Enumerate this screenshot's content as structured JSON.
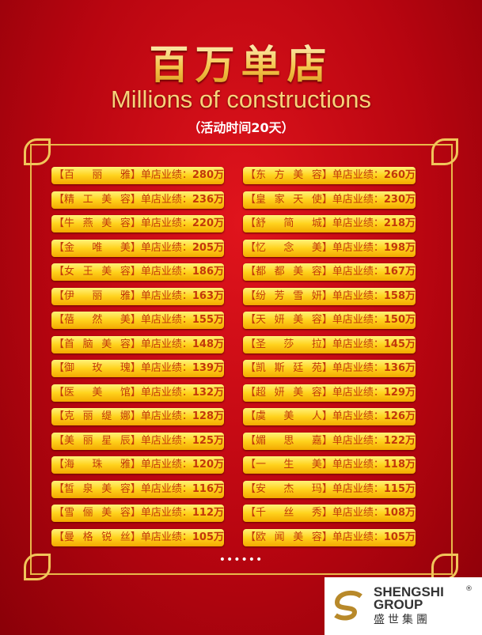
{
  "title": "百万单店",
  "subtitle": "Millions of constructions",
  "period": "（活动时间20天）",
  "label": "单店业绩：",
  "rows": [
    {
      "left": {
        "name": "百丽雅",
        "value": "280万"
      },
      "right": {
        "name": "东方美容",
        "value": "260万"
      }
    },
    {
      "left": {
        "name": "精工美容",
        "value": "236万"
      },
      "right": {
        "name": "皇家天使",
        "value": "230万"
      }
    },
    {
      "left": {
        "name": "牛燕美容",
        "value": "220万"
      },
      "right": {
        "name": "舒简城",
        "value": "218万"
      }
    },
    {
      "left": {
        "name": "金唯美",
        "value": "205万"
      },
      "right": {
        "name": "忆念美",
        "value": "198万"
      }
    },
    {
      "left": {
        "name": "女王美容",
        "value": "186万"
      },
      "right": {
        "name": "都都美容",
        "value": "167万"
      }
    },
    {
      "left": {
        "name": "伊丽雅",
        "value": "163万"
      },
      "right": {
        "name": "纷芳雪妍",
        "value": "158万"
      }
    },
    {
      "left": {
        "name": "蓓然美",
        "value": "155万"
      },
      "right": {
        "name": "天妍美容",
        "value": "150万"
      }
    },
    {
      "left": {
        "name": "首脑美容",
        "value": "148万"
      },
      "right": {
        "name": "圣莎拉",
        "value": "145万"
      }
    },
    {
      "left": {
        "name": "御玫瑰",
        "value": "139万"
      },
      "right": {
        "name": "凯斯廷苑",
        "value": "136万"
      }
    },
    {
      "left": {
        "name": "医美馆",
        "value": "132万"
      },
      "right": {
        "name": "超妍美容",
        "value": "129万"
      }
    },
    {
      "left": {
        "name": "克丽缇娜",
        "value": "128万"
      },
      "right": {
        "name": "虞美人",
        "value": "126万"
      }
    },
    {
      "left": {
        "name": "美丽星辰",
        "value": "125万"
      },
      "right": {
        "name": "媚思嘉",
        "value": "122万"
      }
    },
    {
      "left": {
        "name": "海珠雅",
        "value": "120万"
      },
      "right": {
        "name": "一生美",
        "value": "118万"
      }
    },
    {
      "left": {
        "name": "皙泉美容",
        "value": "116万"
      },
      "right": {
        "name": "安杰玛",
        "value": "115万"
      }
    },
    {
      "left": {
        "name": "雪俪美容",
        "value": "112万"
      },
      "right": {
        "name": "千丝秀",
        "value": "108万"
      }
    },
    {
      "left": {
        "name": "曼格锐丝",
        "value": "105万"
      },
      "right": {
        "name": "欧闻美容",
        "value": "105万"
      }
    }
  ],
  "more": "••••••",
  "logo": {
    "line1": "SHENGSHI",
    "line2": "GROUP",
    "cn": "盛世集團",
    "mark": "®"
  },
  "colors": {
    "background": "#c00a14",
    "badge": "#ffd21c",
    "frame": "#e9b84a",
    "text": "#c2380b"
  }
}
